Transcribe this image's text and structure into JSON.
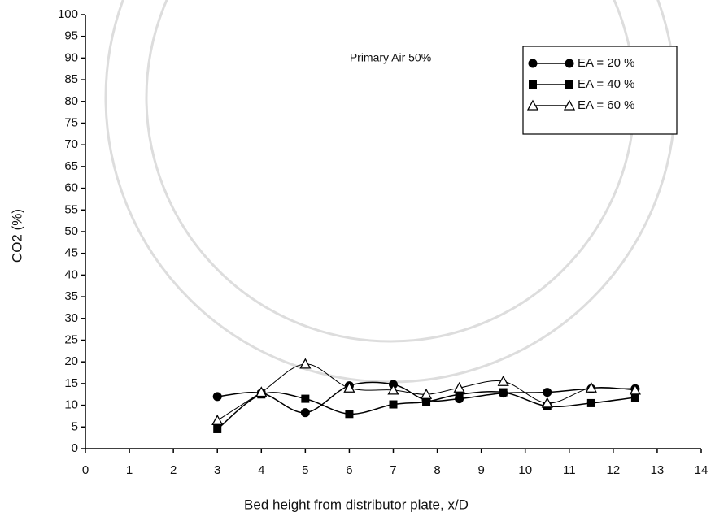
{
  "chart_data": {
    "type": "line",
    "annotation": "Primary Air 50%",
    "x_label": "Bed height from distributor plate, x/D",
    "y_label": "CO2 (%)",
    "x": [
      3,
      4,
      5,
      6,
      7,
      7.75,
      8.5,
      9.5,
      10.5,
      11.5,
      12.5
    ],
    "series": [
      {
        "name": "EA = 20 %",
        "color": "#000000",
        "marker": "circle",
        "values": [
          12,
          12.8,
          8.3,
          14.5,
          14.8,
          11.2,
          11.5,
          12.8,
          13,
          13.8,
          13.8
        ]
      },
      {
        "name": "EA = 40 %",
        "color": "#000000",
        "marker": "square",
        "values": [
          4.5,
          12.5,
          11.5,
          8,
          10.2,
          10.8,
          12.5,
          13,
          9.8,
          10.5,
          11.8
        ]
      },
      {
        "name": "EA = 60 %",
        "color": "#000000",
        "marker": "triangle",
        "values": [
          6.5,
          13,
          19.5,
          14,
          13.5,
          12.5,
          14,
          15.5,
          10.5,
          14,
          13.5
        ]
      }
    ],
    "xlim": [
      0,
      14
    ],
    "xticks": [
      0,
      1,
      2,
      3,
      4,
      5,
      6,
      7,
      8,
      9,
      10,
      11,
      12,
      13,
      14
    ],
    "ylim": [
      0,
      100
    ],
    "yticks": [
      0,
      5,
      10,
      15,
      20,
      25,
      30,
      35,
      40,
      45,
      50,
      55,
      60,
      65,
      70,
      75,
      80,
      85,
      90,
      95,
      100
    ],
    "legend": "top-right"
  }
}
